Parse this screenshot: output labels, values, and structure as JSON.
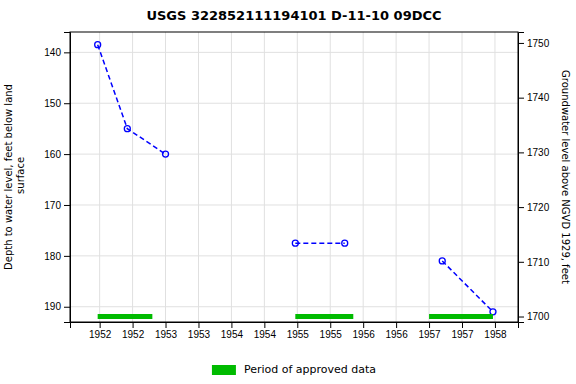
{
  "chart_data": {
    "type": "line",
    "title": "USGS 322852111194101 D-11-10 09DCC",
    "ylabel": "Depth to water level, feet below land\n surface",
    "y2label": "Groundwater level above NGVD 1929, feet",
    "series": [
      {
        "color": "blue",
        "line_style": "dashed",
        "marker": "circle",
        "x": [
          1951.97,
          1952.42,
          1953.0,
          null,
          1954.97,
          1955.72,
          null,
          1957.2,
          1957.97
        ],
        "values": [
          138.5,
          155.0,
          160.0,
          null,
          177.5,
          177.5,
          null,
          181.0,
          191.0
        ]
      }
    ],
    "bands": {
      "name": "Period of approved data",
      "color": "#00bb00",
      "x_start": [
        1951.97,
        1954.97,
        1957.0
      ],
      "x_end": [
        1952.8,
        1955.85,
        1957.97
      ]
    },
    "xlim": [
      1951.55,
      1958.35
    ],
    "xticks": [
      1952,
      {
        "value": 1952.5,
        "label": "1952"
      },
      1953,
      {
        "value": 1953.5,
        "label": "1953"
      },
      1954,
      {
        "value": 1954.5,
        "label": "1954"
      },
      1955,
      {
        "value": 1955.5,
        "label": "1955"
      },
      1956,
      {
        "value": 1956.5,
        "label": "1956"
      },
      1957,
      {
        "value": 1957.5,
        "label": "1957"
      },
      1958
    ],
    "ylim": [
      193,
      136
    ],
    "yticks": [
      140,
      150,
      160,
      170,
      180,
      190
    ],
    "y2lim": [
      1699,
      1752
    ],
    "y2ticks": [
      1700,
      1710,
      1720,
      1730,
      1740,
      1750
    ],
    "grid": true,
    "legend": "bottom"
  }
}
